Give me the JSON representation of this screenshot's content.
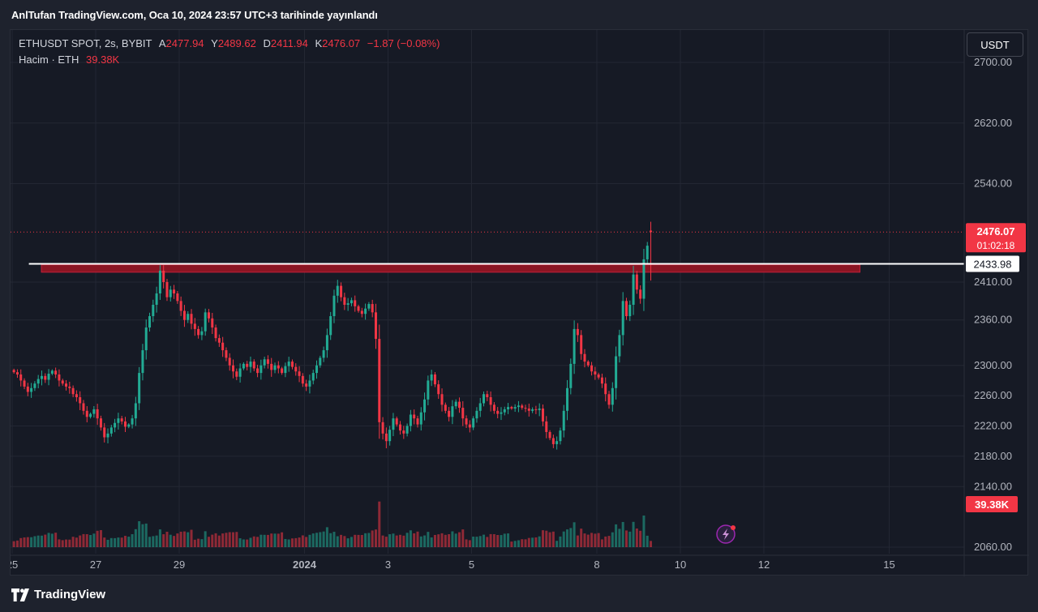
{
  "header": {
    "text": "AnlTufan TradingView.com, Oca 10, 2024 23:57 UTC+3 tarihinde yayınlandı"
  },
  "legend": {
    "symbol": "ETHUSDT SPOT, 2s, BYBIT",
    "open_label": "A",
    "open": "2477.94",
    "high_label": "Y",
    "high": "2489.62",
    "low_label": "D",
    "low": "2411.94",
    "close_label": "K",
    "close": "2476.07",
    "change": "−1.87 (−0.08%)",
    "volume_label": "Hacim · ETH",
    "volume": "39.38K"
  },
  "currency": "USDT",
  "price_label": {
    "price": "2476.07",
    "countdown": "01:02:18"
  },
  "line_label": "2433.98",
  "volume_label_badge": "39.38K",
  "footer": {
    "brand": "TradingView"
  },
  "colors": {
    "up": "#22ab94",
    "down": "#f23645",
    "background": "#161a25",
    "zone": "#8b1523",
    "line": "#ffffff"
  },
  "chart_data": {
    "type": "candlestick",
    "title": "",
    "symbol": "ETHUSDT SPOT, 2s, BYBIT",
    "y_ticks": [
      {
        "value": 2700,
        "label": "2700.00"
      },
      {
        "value": 2620,
        "label": "2620.00"
      },
      {
        "value": 2540,
        "label": "2540.00"
      },
      {
        "value": 2410,
        "label": "2410.00"
      },
      {
        "value": 2360,
        "label": "2360.00"
      },
      {
        "value": 2300,
        "label": "2300.00"
      },
      {
        "value": 2260,
        "label": "2260.00"
      },
      {
        "value": 2220,
        "label": "2220.00"
      },
      {
        "value": 2180,
        "label": "2180.00"
      },
      {
        "value": 2140,
        "label": "2140.00"
      },
      {
        "value": 2060,
        "label": "2060.00"
      }
    ],
    "x_ticks": [
      {
        "day": 25,
        "label": "25"
      },
      {
        "day": 27,
        "label": "27"
      },
      {
        "day": 29,
        "label": "29"
      },
      {
        "day": 32,
        "label": "2024"
      },
      {
        "day": 34,
        "label": "3"
      },
      {
        "day": 36,
        "label": "5"
      },
      {
        "day": 39,
        "label": "8"
      },
      {
        "day": 41,
        "label": "10"
      },
      {
        "day": 43,
        "label": "12"
      },
      {
        "day": 46,
        "label": "15"
      }
    ],
    "x_axis_note": "day index counted from Dec 1, 2023 (32 = Jan 1, 2024)",
    "candles_per_day": 12,
    "first_candle_day": 25.0,
    "resistance_line": 2433.98,
    "resistance_zone": [
      2423,
      2433
    ],
    "current_price": 2476.07,
    "closes": [
      2291,
      2288,
      2280,
      2272,
      2265,
      2270,
      2276,
      2282,
      2286,
      2281,
      2289,
      2293,
      2288,
      2280,
      2276,
      2272,
      2270,
      2262,
      2258,
      2250,
      2240,
      2232,
      2236,
      2242,
      2230,
      2218,
      2205,
      2210,
      2218,
      2224,
      2230,
      2226,
      2219,
      2222,
      2230,
      2250,
      2290,
      2320,
      2350,
      2365,
      2380,
      2395,
      2425,
      2410,
      2390,
      2400,
      2395,
      2385,
      2372,
      2360,
      2368,
      2355,
      2348,
      2340,
      2345,
      2370,
      2362,
      2350,
      2336,
      2330,
      2320,
      2310,
      2300,
      2292,
      2285,
      2296,
      2302,
      2298,
      2305,
      2296,
      2290,
      2300,
      2308,
      2302,
      2294,
      2300,
      2296,
      2290,
      2299,
      2305,
      2298,
      2292,
      2286,
      2276,
      2272,
      2280,
      2290,
      2300,
      2310,
      2320,
      2340,
      2365,
      2392,
      2405,
      2390,
      2380,
      2382,
      2386,
      2378,
      2372,
      2368,
      2375,
      2381,
      2370,
      2335,
      2225,
      2210,
      2200,
      2215,
      2230,
      2222,
      2214,
      2210,
      2220,
      2235,
      2230,
      2222,
      2238,
      2255,
      2280,
      2288,
      2275,
      2262,
      2248,
      2240,
      2232,
      2246,
      2252,
      2244,
      2230,
      2222,
      2218,
      2230,
      2240,
      2250,
      2262,
      2258,
      2248,
      2240,
      2236,
      2238,
      2242,
      2245,
      2243,
      2245,
      2247,
      2244,
      2243,
      2240,
      2242,
      2241,
      2243,
      2226,
      2212,
      2204,
      2196,
      2200,
      2214,
      2240,
      2270,
      2302,
      2348,
      2340,
      2315,
      2305,
      2300,
      2292,
      2288,
      2284,
      2276,
      2262,
      2248,
      2270,
      2312,
      2340,
      2385,
      2365,
      2380,
      2420,
      2400,
      2388,
      2440,
      2458,
      2476
    ],
    "ohlc_last": {
      "open": 2477.94,
      "high": 2489.62,
      "low": 2411.94,
      "close": 2476.07,
      "change": -1.87,
      "change_pct": -0.08
    },
    "volume_unit": "ETH",
    "volume_last": 39380
  }
}
